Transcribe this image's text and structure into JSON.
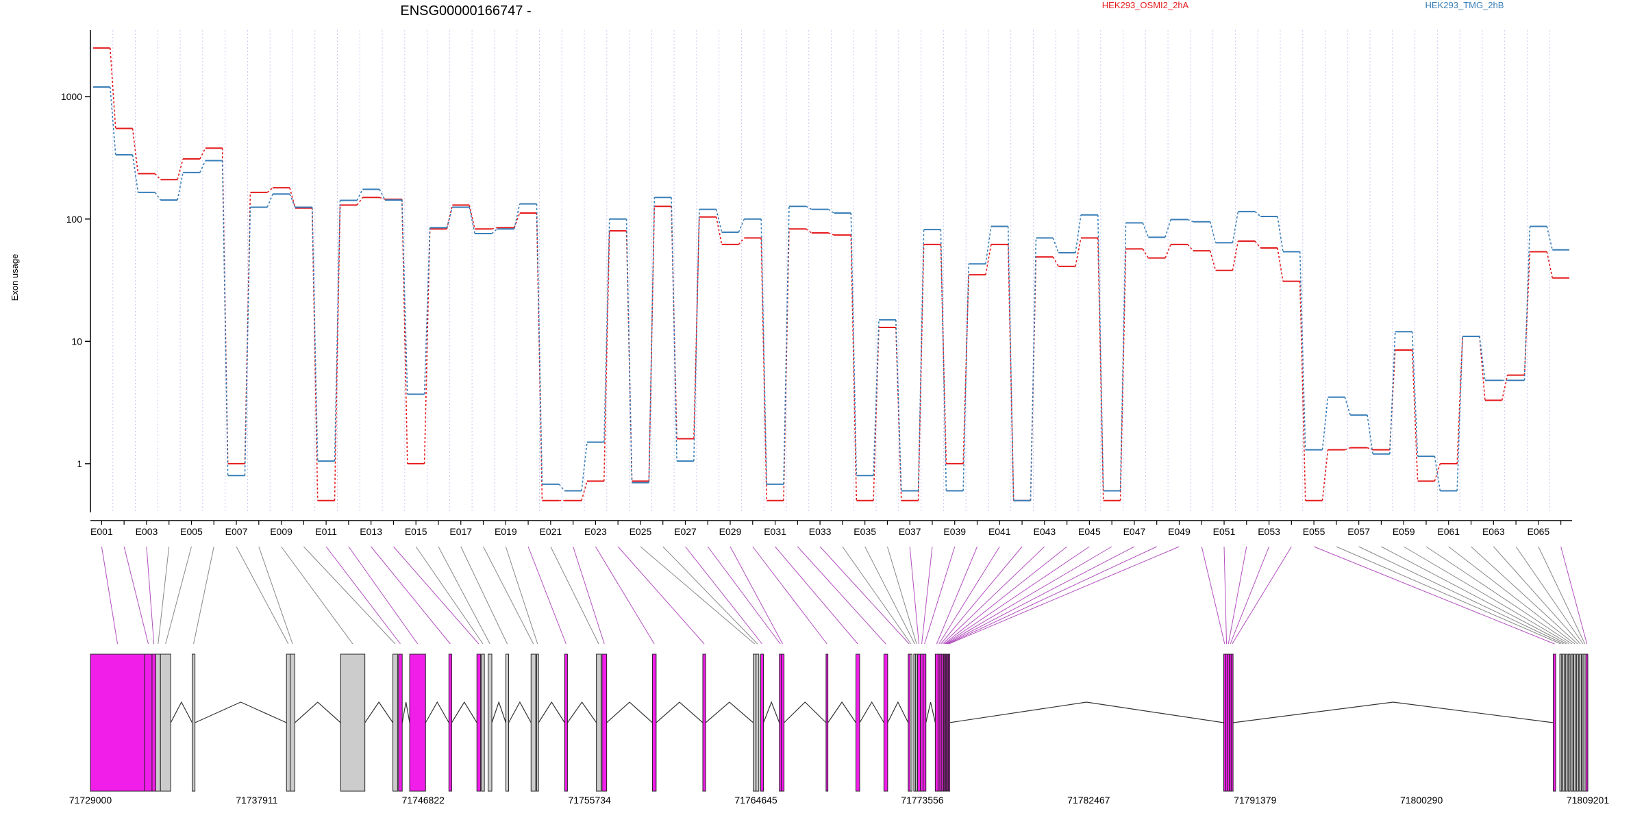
{
  "chart_data": {
    "type": "line",
    "title": "ENSG00000166747 -",
    "ylabel": "Exon usage",
    "yscale": "log",
    "ylim": [
      0.4,
      3500
    ],
    "yticks": [
      "1",
      "10",
      "100",
      "1000"
    ],
    "ytick_values": [
      1,
      10,
      100,
      1000
    ],
    "xtick_labels": [
      "E001",
      "E003",
      "E005",
      "E007",
      "E009",
      "E011",
      "E013",
      "E015",
      "E017",
      "E019",
      "E021",
      "E023",
      "E025",
      "E027",
      "E029",
      "E031",
      "E033",
      "E035",
      "E037",
      "E039",
      "E041",
      "E043",
      "E045",
      "E047",
      "E049",
      "E051",
      "E053",
      "E055",
      "E057",
      "E059",
      "E061",
      "E063",
      "E065"
    ],
    "categories": [
      "E001",
      "E002",
      "E003",
      "E004",
      "E005",
      "E006",
      "E007",
      "E008",
      "E009",
      "E010",
      "E011",
      "E012",
      "E013",
      "E014",
      "E015",
      "E016",
      "E017",
      "E018",
      "E019",
      "E020",
      "E021",
      "E022",
      "E023",
      "E024",
      "E025",
      "E026",
      "E027",
      "E028",
      "E029",
      "E030",
      "E031",
      "E032",
      "E033",
      "E034",
      "E035",
      "E036",
      "E037",
      "E038",
      "E039",
      "E040",
      "E041",
      "E042",
      "E043",
      "E044",
      "E045",
      "E046",
      "E047",
      "E048",
      "E049",
      "E050",
      "E051",
      "E052",
      "E053",
      "E054",
      "E055",
      "E056",
      "E057",
      "E058",
      "E059",
      "E060",
      "E061",
      "E062",
      "E063",
      "E064",
      "E065",
      "E066"
    ],
    "series": [
      {
        "name": "HEK293_OSMI2_2hA",
        "color": "#e41a1c",
        "values": [
          2500,
          550,
          235,
          210,
          310,
          380,
          1.0,
          165,
          180,
          123,
          0.5,
          130,
          150,
          145,
          1.0,
          83,
          130,
          83,
          85,
          112,
          0.5,
          0.5,
          0.72,
          80,
          0.72,
          127,
          1.6,
          104,
          62,
          70,
          0.5,
          83,
          77,
          74,
          0.5,
          13,
          0.5,
          62,
          1.0,
          35,
          62,
          0.5,
          49,
          41,
          70,
          0.5,
          57,
          48,
          62,
          55,
          38,
          66,
          58,
          31,
          0.5,
          1.3,
          1.35,
          1.3,
          8.5,
          0.72,
          1.0,
          11,
          3.3,
          5.3,
          54,
          33
        ]
      },
      {
        "name": "HEK293_TMG_2hB",
        "color": "#377eb8",
        "values": [
          1200,
          335,
          165,
          143,
          240,
          300,
          0.8,
          125,
          160,
          125,
          1.05,
          142,
          175,
          143,
          3.7,
          85,
          125,
          76,
          83,
          133,
          0.68,
          0.6,
          1.5,
          100,
          0.7,
          150,
          1.05,
          120,
          78,
          100,
          0.68,
          127,
          120,
          112,
          0.8,
          15,
          0.6,
          82,
          0.6,
          43,
          87,
          0.5,
          70,
          53,
          108,
          0.6,
          93,
          71,
          99,
          95,
          64,
          115,
          105,
          54,
          1.3,
          3.5,
          2.5,
          1.2,
          12,
          1.15,
          0.6,
          11,
          4.8,
          4.8,
          87,
          56
        ]
      }
    ],
    "gene_model": {
      "coordinate_labels": [
        "71729000",
        "71737911",
        "71746822",
        "71755734",
        "71764645",
        "71773556",
        "71782467",
        "71791379",
        "71800290",
        "71809201"
      ],
      "coordinate_values": [
        71729000,
        71737911,
        71746822,
        71755734,
        71764645,
        71773556,
        71782467,
        71791379,
        71800290,
        71809201
      ],
      "exon_color_significant": "#f01ee8",
      "exon_color_normal": "#cccccc",
      "line_color_significant": "#b34fbf",
      "line_color_normal": "#888888",
      "significant_exons": [
        "E001",
        "E002",
        "E003",
        "E011",
        "E012",
        "E013",
        "E014",
        "E020",
        "E022",
        "E023",
        "E024",
        "E027",
        "E028",
        "E029",
        "E030",
        "E031",
        "E032",
        "E033",
        "E037",
        "E038",
        "E039",
        "E040",
        "E041",
        "E042",
        "E043",
        "E044",
        "E045",
        "E046",
        "E047",
        "E048",
        "E049",
        "E050",
        "E051",
        "E052",
        "E053",
        "E054",
        "E055",
        "E066"
      ],
      "exons": [
        {
          "id": "E001",
          "start": 71729000,
          "end": 71731900
        },
        {
          "id": "E002",
          "start": 71731900,
          "end": 71732300
        },
        {
          "id": "E003",
          "start": 71732300,
          "end": 71732500
        },
        {
          "id": "E004",
          "start": 71732500,
          "end": 71732750
        },
        {
          "id": "E005",
          "start": 71732750,
          "end": 71733300
        },
        {
          "id": "E006",
          "start": 71734450,
          "end": 71734600
        },
        {
          "id": "E007",
          "start": 71739500,
          "end": 71739700
        },
        {
          "id": "E008",
          "start": 71739700,
          "end": 71739950
        },
        {
          "id": "E009",
          "start": 71742400,
          "end": 71743700
        },
        {
          "id": "E010",
          "start": 71745200,
          "end": 71745450
        },
        {
          "id": "E011",
          "start": 71745500,
          "end": 71745700
        },
        {
          "id": "E012",
          "start": 71746100,
          "end": 71746950
        },
        {
          "id": "E013",
          "start": 71748200,
          "end": 71748350
        },
        {
          "id": "E014",
          "start": 71749700,
          "end": 71749900
        },
        {
          "id": "E015",
          "start": 71749950,
          "end": 71750100
        },
        {
          "id": "E016",
          "start": 71750300,
          "end": 71750500
        },
        {
          "id": "E017",
          "start": 71751250,
          "end": 71751400
        },
        {
          "id": "E018",
          "start": 71752600,
          "end": 71752850
        },
        {
          "id": "E019",
          "start": 71752900,
          "end": 71753000
        },
        {
          "id": "E020",
          "start": 71754400,
          "end": 71754550
        },
        {
          "id": "E021",
          "start": 71756100,
          "end": 71756350
        },
        {
          "id": "E022",
          "start": 71756400,
          "end": 71756650
        },
        {
          "id": "E023",
          "start": 71759100,
          "end": 71759300
        },
        {
          "id": "E024",
          "start": 71761800,
          "end": 71761950
        },
        {
          "id": "E025",
          "start": 71764500,
          "end": 71764650
        },
        {
          "id": "E026",
          "start": 71764650,
          "end": 71764800
        },
        {
          "id": "E027",
          "start": 71764900,
          "end": 71765050
        },
        {
          "id": "E028",
          "start": 71765900,
          "end": 71766000
        },
        {
          "id": "E029",
          "start": 71766000,
          "end": 71766150
        },
        {
          "id": "E030",
          "start": 71768400,
          "end": 71768500
        },
        {
          "id": "E031",
          "start": 71770000,
          "end": 71770200
        },
        {
          "id": "E032",
          "start": 71771500,
          "end": 71771700
        },
        {
          "id": "E033",
          "start": 71772800,
          "end": 71772900
        },
        {
          "id": "E034",
          "start": 71772900,
          "end": 71773000
        },
        {
          "id": "E035",
          "start": 71773100,
          "end": 71773200
        },
        {
          "id": "E036",
          "start": 71773200,
          "end": 71773300
        },
        {
          "id": "E037",
          "start": 71773300,
          "end": 71773450
        },
        {
          "id": "E038",
          "start": 71773450,
          "end": 71773600
        },
        {
          "id": "E039",
          "start": 71773600,
          "end": 71773750
        },
        {
          "id": "E040",
          "start": 71774250,
          "end": 71774400
        },
        {
          "id": "E041",
          "start": 71774400,
          "end": 71774500
        },
        {
          "id": "E042",
          "start": 71774500,
          "end": 71774600
        },
        {
          "id": "E043",
          "start": 71774600,
          "end": 71774700
        },
        {
          "id": "E044",
          "start": 71774700,
          "end": 71774750
        },
        {
          "id": "E045",
          "start": 71774750,
          "end": 71774800
        },
        {
          "id": "E046",
          "start": 71774800,
          "end": 71774850
        },
        {
          "id": "E047",
          "start": 71774850,
          "end": 71774900
        },
        {
          "id": "E048",
          "start": 71774900,
          "end": 71774950
        },
        {
          "id": "E049",
          "start": 71774950,
          "end": 71775000
        },
        {
          "id": "E050",
          "start": 71789700,
          "end": 71789800
        },
        {
          "id": "E051",
          "start": 71789800,
          "end": 71789900
        },
        {
          "id": "E052",
          "start": 71789900,
          "end": 71790000
        },
        {
          "id": "E053",
          "start": 71790000,
          "end": 71790100
        },
        {
          "id": "E054",
          "start": 71790100,
          "end": 71790200
        },
        {
          "id": "E055",
          "start": 71807350,
          "end": 71807480
        },
        {
          "id": "E056",
          "start": 71807700,
          "end": 71807800
        },
        {
          "id": "E057",
          "start": 71807850,
          "end": 71807950
        },
        {
          "id": "E058",
          "start": 71808000,
          "end": 71808100
        },
        {
          "id": "E059",
          "start": 71808150,
          "end": 71808250
        },
        {
          "id": "E060",
          "start": 71808300,
          "end": 71808400
        },
        {
          "id": "E061",
          "start": 71808450,
          "end": 71808550
        },
        {
          "id": "E062",
          "start": 71808600,
          "end": 71808700
        },
        {
          "id": "E063",
          "start": 71808750,
          "end": 71808850
        },
        {
          "id": "E064",
          "start": 71808900,
          "end": 71808990
        },
        {
          "id": "E065",
          "start": 71808990,
          "end": 71809100
        },
        {
          "id": "E066",
          "start": 71809100,
          "end": 71809201
        }
      ]
    }
  }
}
